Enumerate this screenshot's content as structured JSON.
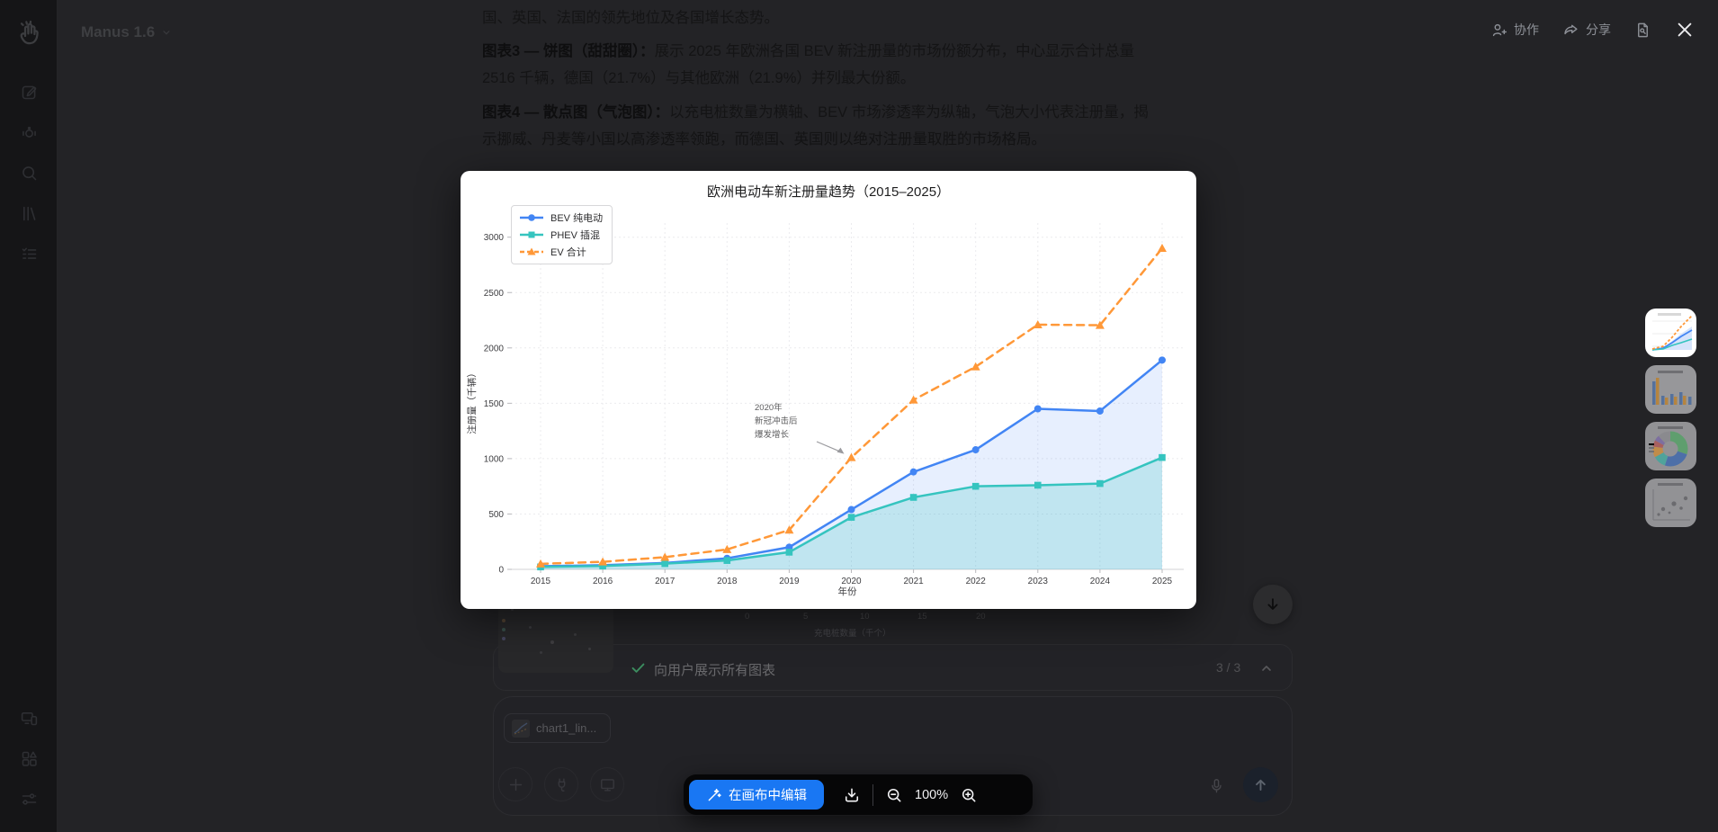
{
  "app": {
    "title": "Manus 1.6"
  },
  "topbar": {
    "collaborate": "协作",
    "share": "分享"
  },
  "sidebar": {
    "items": [
      {
        "icon": "compose-icon"
      },
      {
        "icon": "agent-icon"
      },
      {
        "icon": "search-icon"
      },
      {
        "icon": "library-icon"
      },
      {
        "icon": "tasks-icon"
      }
    ],
    "bottom_items": [
      {
        "icon": "devices-icon"
      },
      {
        "icon": "apps-icon"
      },
      {
        "icon": "settings-icon"
      }
    ]
  },
  "background_text": {
    "line1": "国、英国、法国的领先地位及各国增长态势。",
    "p3_bold": "图表3 — 饼图（甜甜圈）：",
    "p3_rest": "展示 2025 年欧洲各国 BEV 新注册量的市场份额分布，中心显示合计总量",
    "p3_line2": "2516 千辆，德国（21.7%）与其他欧洲（21.9%）并列最大份额。",
    "p4_bold": "图表4 — 散点图（气泡图）：",
    "p4_rest": "以充电桩数量为横轴、BEV 市场渗透率为纵轴，气泡大小代表注册量，揭",
    "p4_line2": "示挪威、丹麦等小国以高渗透率领跑，而德国、英国则以绝对注册量取胜的市场格局。"
  },
  "bg_fragment": {
    "xticks": [
      "0",
      "5",
      "10",
      "15",
      "20"
    ],
    "xlabel": "充电桩数量（千个）"
  },
  "chart_data": {
    "type": "line",
    "title": "欧洲电动车新注册量趋势（2015–2025）",
    "xlabel": "年份",
    "ylabel": "注册量（千辆）",
    "x": [
      2015,
      2016,
      2017,
      2018,
      2019,
      2020,
      2021,
      2022,
      2023,
      2024,
      2025
    ],
    "series": [
      {
        "name": "BEV 纯电动",
        "color": "#4285f4",
        "marker": "circle",
        "dash": "solid",
        "fill": "rgba(66,133,244,0.13)",
        "values": [
          28,
          38,
          58,
          100,
          200,
          540,
          880,
          1080,
          1450,
          1430,
          1890
        ]
      },
      {
        "name": "PHEV 插混",
        "color": "#35c4bf",
        "marker": "square",
        "dash": "solid",
        "fill": "rgba(53,196,191,0.22)",
        "values": [
          22,
          30,
          52,
          80,
          155,
          470,
          650,
          750,
          760,
          775,
          1010
        ]
      },
      {
        "name": "EV 合计",
        "color": "#ff9838",
        "marker": "triangle",
        "dash": "dashed",
        "fill": null,
        "values": [
          50,
          68,
          110,
          180,
          355,
          1010,
          1530,
          1830,
          2210,
          2205,
          2900
        ]
      }
    ],
    "ylim": [
      0,
      3000
    ],
    "yticks": [
      0,
      500,
      1000,
      1500,
      2000,
      2500,
      3000
    ],
    "grid": true,
    "legend_position": "top-left",
    "annotation": {
      "text": "2020年\n新冠冲击后\n爆发增长",
      "target_x": 2020,
      "target_series": "EV 合计"
    }
  },
  "lightbox": {
    "edit_button": "在画布中编辑",
    "zoom_level": "100%"
  },
  "task_row": {
    "label": "向用户展示所有图表",
    "progress": "3 / 3"
  },
  "attachment": {
    "name": "chart1_lin..."
  },
  "thumbnails": [
    {
      "name": "line-chart-thumbnail",
      "active": true
    },
    {
      "name": "bar-chart-thumbnail",
      "active": false
    },
    {
      "name": "donut-chart-thumbnail",
      "active": false
    },
    {
      "name": "scatter-chart-thumbnail",
      "active": false
    }
  ],
  "colors": {
    "accent_blue": "#1977f3",
    "bev_blue": "#4285f4",
    "phev_teal": "#35c4bf",
    "ev_orange": "#ff9838",
    "check_green": "#3c8d5f"
  }
}
